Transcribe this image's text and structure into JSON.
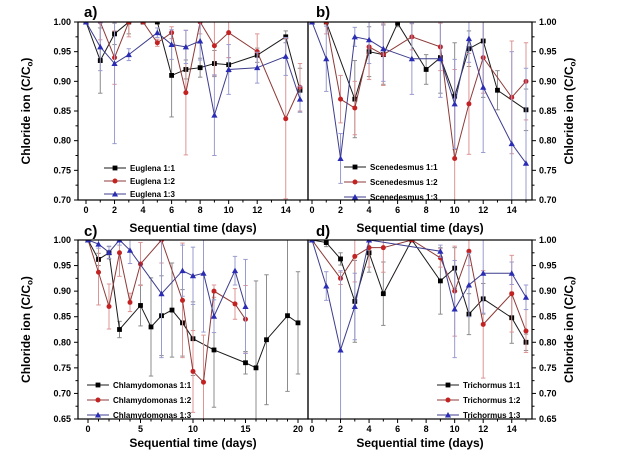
{
  "figure": {
    "background": "#ffffff",
    "xlabel": "Sequential time (days)",
    "ylabel_pre": "Chloride ion (C/C",
    "ylabel_sub": "o",
    "ylabel_post": ")",
    "series_palette": {
      "black": {
        "marker": "#000000",
        "line": "#1a1a1a",
        "error": "#8c8c8c"
      },
      "red": {
        "marker": "#c32222",
        "line": "#8e3a38",
        "error": "#dd9494"
      },
      "blue": {
        "marker": "#2a2cb4",
        "line": "#3d3d8e",
        "error": "#9a9ccf"
      }
    }
  },
  "chart_data": [
    {
      "type": "line",
      "panel_label": "a)",
      "xlabel": "Sequential time (days)",
      "ylabel": "Chloride ion (C/Co)",
      "xlim": [
        0,
        15
      ],
      "xticks": [
        0,
        2,
        4,
        6,
        8,
        10,
        12,
        14
      ],
      "xminor_step": 1,
      "ylim": [
        0.7,
        1.0
      ],
      "ytick_step": 0.05,
      "yminor_step": 0.025,
      "yaxis_side": "left",
      "grid": false,
      "legend_position": "bottom-left",
      "series": [
        {
          "name": "Euglena 1:1",
          "marker": "square",
          "color_key": "black",
          "points": [
            [
              0,
              1.0,
              0
            ],
            [
              1,
              0.935,
              0.055
            ],
            [
              2,
              0.98,
              0.018
            ],
            [
              3,
              1.0,
              0.02
            ],
            [
              4,
              1.0,
              0
            ],
            [
              5,
              1.0,
              0
            ],
            [
              6,
              0.91,
              0.07
            ],
            [
              7,
              0.92,
              0.016
            ],
            [
              8,
              0.923,
              0.016
            ],
            [
              9,
              0.93,
              0.022
            ],
            [
              10,
              0.928,
              0.012
            ],
            [
              12,
              0.944,
              0.012
            ],
            [
              14,
              0.975,
              0.01
            ],
            [
              15,
              0.885,
              0.037
            ]
          ]
        },
        {
          "name": "Euglena 1:2",
          "marker": "circle",
          "color_key": "red",
          "points": [
            [
              0,
              1.0,
              0
            ],
            [
              1,
              1.0,
              0.03
            ],
            [
              2,
              0.94,
              0.045
            ],
            [
              3,
              1.0,
              0.025
            ],
            [
              4,
              1.0,
              0
            ],
            [
              5,
              0.965,
              0.006
            ],
            [
              6,
              0.982,
              0.01
            ],
            [
              7,
              0.881,
              0.105
            ],
            [
              8,
              1.0,
              0.02
            ],
            [
              9,
              0.96,
              0.05
            ],
            [
              10,
              0.982,
              0.042
            ],
            [
              12,
              0.95,
              0.03
            ],
            [
              14,
              0.837,
              0.135
            ],
            [
              15,
              0.89,
              0.04
            ]
          ]
        },
        {
          "name": "Euglena 1:3",
          "marker": "triangle",
          "color_key": "blue",
          "points": [
            [
              0,
              1.0,
              0
            ],
            [
              1,
              0.958,
              0.04
            ],
            [
              2,
              0.93,
              0.135
            ],
            [
              3,
              0.945,
              0.01
            ],
            [
              5,
              0.982,
              0.008
            ],
            [
              6,
              0.962,
              0.025
            ],
            [
              7,
              0.958,
              0.028
            ],
            [
              8,
              0.968,
              0.032
            ],
            [
              9,
              0.843,
              0.068
            ],
            [
              10,
              0.92,
              0.042
            ],
            [
              12,
              0.923,
              0.026
            ],
            [
              14,
              0.942,
              0.032
            ],
            [
              15,
              0.87,
              0.022
            ]
          ]
        }
      ]
    },
    {
      "type": "line",
      "panel_label": "b)",
      "xlabel": "Sequential time (days)",
      "ylabel": "Chloride ion (C/Co)",
      "xlim": [
        0,
        15
      ],
      "xticks": [
        0,
        2,
        4,
        6,
        8,
        10,
        12,
        14
      ],
      "xminor_step": 1,
      "ylim": [
        0.7,
        1.0
      ],
      "ytick_step": 0.05,
      "yminor_step": 0.025,
      "yaxis_side": "right",
      "grid": false,
      "legend_position": "bottom-left",
      "series": [
        {
          "name": "Scenedesmus 1:1",
          "marker": "square",
          "color_key": "black",
          "points": [
            [
              0,
              1.0,
              0
            ],
            [
              1,
              1.0,
              0
            ],
            [
              3,
              0.87,
              0.065
            ],
            [
              4,
              0.95,
              0.042
            ],
            [
              5,
              0.945,
              0.05
            ],
            [
              6,
              0.998,
              0.006
            ],
            [
              8,
              0.92,
              0.025
            ],
            [
              9,
              0.94,
              0.06
            ],
            [
              10,
              0.875,
              0.09
            ],
            [
              11,
              0.955,
              0.03
            ],
            [
              12,
              0.968,
              0.095
            ],
            [
              13,
              0.885,
              0.033
            ],
            [
              15,
              0.852,
              0.035
            ]
          ]
        },
        {
          "name": "Scenedesmus 1:2",
          "marker": "circle",
          "color_key": "red",
          "points": [
            [
              0,
              1.0,
              0
            ],
            [
              1,
              1.0,
              0.02
            ],
            [
              2,
              0.87,
              0.04
            ],
            [
              3,
              0.855,
              0.045
            ],
            [
              4,
              0.958,
              0.055
            ],
            [
              5,
              0.945,
              0.052
            ],
            [
              7,
              0.975,
              0.022
            ],
            [
              9,
              0.958,
              0.04
            ],
            [
              10,
              0.77,
              0.15
            ],
            [
              11,
              0.862,
              0.085
            ],
            [
              12,
              0.94,
              0.06
            ],
            [
              14,
              0.873,
              0.095
            ],
            [
              15,
              0.9,
              0.065
            ]
          ]
        },
        {
          "name": "Scenedesmus 1:3",
          "marker": "triangle",
          "color_key": "blue",
          "points": [
            [
              0,
              1.0,
              0
            ],
            [
              1,
              0.938,
              0.055
            ],
            [
              2,
              0.77,
              0.042
            ],
            [
              3,
              0.975,
              0.016
            ],
            [
              4,
              0.97,
              0.04
            ],
            [
              5,
              0.955,
              0.055
            ],
            [
              7,
              0.938,
              0.06
            ],
            [
              9,
              0.938,
              0.065
            ],
            [
              10,
              0.862,
              0.075
            ],
            [
              11,
              0.972,
              0.04
            ],
            [
              12,
              0.89,
              0.11
            ],
            [
              14,
              0.795,
              0.155
            ],
            [
              15,
              0.762,
              0.16
            ]
          ]
        }
      ]
    },
    {
      "type": "line",
      "panel_label": "c)",
      "xlabel": "Sequential time (days)",
      "ylabel": "Chloride ion (C/Co)",
      "xlim": [
        0,
        20
      ],
      "xticks": [
        0,
        5,
        10,
        15,
        20
      ],
      "xminor_step": 1,
      "ylim": [
        0.65,
        1.0
      ],
      "ytick_step": 0.05,
      "yminor_step": 0.025,
      "yaxis_side": "left",
      "grid": false,
      "legend_position": "bottom-left",
      "series": [
        {
          "name": "Chlamydomonas 1:1",
          "marker": "square",
          "color_key": "black",
          "points": [
            [
              0,
              1.0,
              0
            ],
            [
              1,
              0.962,
              0.012
            ],
            [
              2,
              0.975,
              0.012
            ],
            [
              3,
              0.825,
              0.016
            ],
            [
              5,
              0.872,
              0.04
            ],
            [
              6,
              0.83,
              0.096
            ],
            [
              7,
              0.852,
              0.078
            ],
            [
              8,
              0.863,
              0.092
            ],
            [
              9,
              0.838,
              0.065
            ],
            [
              10,
              0.807,
              0.072
            ],
            [
              12,
              0.785,
              0.112
            ],
            [
              15,
              0.76,
              0.022
            ],
            [
              16,
              0.75,
              0.17
            ],
            [
              17,
              0.805,
              0.127
            ],
            [
              19,
              0.852,
              0.148
            ],
            [
              20,
              0.838,
              0.1
            ]
          ]
        },
        {
          "name": "Chlamydomonas 1:2",
          "marker": "circle",
          "color_key": "red",
          "points": [
            [
              0,
              1.0,
              0
            ],
            [
              1,
              0.937,
              0.064
            ],
            [
              2,
              0.87,
              0.044
            ],
            [
              3,
              0.975,
              0.046
            ],
            [
              4,
              0.878,
              0.018
            ],
            [
              5,
              0.953,
              0.042
            ],
            [
              7,
              1.0,
              0.045
            ],
            [
              9,
              0.882,
              0.112
            ],
            [
              10,
              0.743,
              0.08
            ],
            [
              11,
              0.722,
              0.092
            ],
            [
              12,
              0.9,
              0.012
            ],
            [
              14,
              0.875,
              0.03
            ],
            [
              15,
              0.845,
              0.066
            ]
          ]
        },
        {
          "name": "Chlamydomonas 1:3",
          "marker": "triangle",
          "color_key": "blue",
          "points": [
            [
              0,
              1.0,
              0
            ],
            [
              1,
              0.992,
              0.008
            ],
            [
              2,
              0.976,
              0.012
            ],
            [
              3,
              1.0,
              0.01
            ],
            [
              4,
              0.98,
              0.026
            ],
            [
              7,
              0.895,
              0.125
            ],
            [
              9,
              0.94,
              0.05
            ],
            [
              10,
              0.93,
              0.056
            ],
            [
              11,
              0.935,
              0.115
            ],
            [
              12,
              0.851,
              0.032
            ],
            [
              14,
              0.94,
              0.028
            ],
            [
              15,
              0.87,
              0.092
            ]
          ]
        }
      ]
    },
    {
      "type": "line",
      "panel_label": "d)",
      "xlabel": "Sequential time (days)",
      "ylabel": "Chloride ion (C/Co)",
      "xlim": [
        0,
        15
      ],
      "xticks": [
        0,
        2,
        4,
        6,
        8,
        10,
        12,
        14
      ],
      "xminor_step": 1,
      "ylim": [
        0.65,
        1.0
      ],
      "ytick_step": 0.05,
      "yminor_step": 0.025,
      "yaxis_side": "right",
      "grid": false,
      "legend_position": "bottom-right",
      "series": [
        {
          "name": "Trichormus 1:1",
          "marker": "square",
          "color_key": "black",
          "points": [
            [
              0,
              1.0,
              0
            ],
            [
              1,
              0.995,
              0.008
            ],
            [
              2,
              0.963,
              0.012
            ],
            [
              3,
              0.88,
              0.08
            ],
            [
              4,
              0.975,
              0.038
            ],
            [
              5,
              0.895,
              0.062
            ],
            [
              7,
              1.0,
              0
            ],
            [
              9,
              0.92,
              0.065
            ],
            [
              10,
              0.945,
              0.04
            ],
            [
              11,
              0.855,
              0.04
            ],
            [
              12,
              0.885,
              0.03
            ],
            [
              14,
              0.848,
              0.05
            ],
            [
              15,
              0.8,
              0.016
            ]
          ]
        },
        {
          "name": "Trichormus 1:2",
          "marker": "circle",
          "color_key": "red",
          "points": [
            [
              0,
              1.0,
              0
            ],
            [
              2,
              0.925,
              0.012
            ],
            [
              3,
              0.968,
              0.05
            ],
            [
              4,
              0.985,
              0.038
            ],
            [
              5,
              0.985,
              0.048
            ],
            [
              7,
              1.0,
              0
            ],
            [
              9,
              0.965,
              0.018
            ],
            [
              10,
              0.9,
              0.088
            ],
            [
              11,
              0.978,
              0.028
            ],
            [
              12,
              0.835,
              0.105
            ],
            [
              14,
              0.895,
              0.075
            ],
            [
              15,
              0.822,
              0.042
            ]
          ]
        },
        {
          "name": "Trichormus 1:3",
          "marker": "triangle",
          "color_key": "blue",
          "points": [
            [
              0,
              1.0,
              0
            ],
            [
              1,
              0.91,
              0.028
            ],
            [
              2,
              0.785,
              0.155
            ],
            [
              3,
              0.87,
              0.065
            ],
            [
              4,
              1.0,
              0
            ],
            [
              9,
              0.978,
              0.012
            ],
            [
              10,
              0.865,
              0.095
            ],
            [
              11,
              0.912,
              0.062
            ],
            [
              12,
              0.935,
              0.078
            ],
            [
              14,
              0.935,
              0.022
            ],
            [
              15,
              0.888,
              0.024
            ]
          ]
        }
      ]
    }
  ]
}
